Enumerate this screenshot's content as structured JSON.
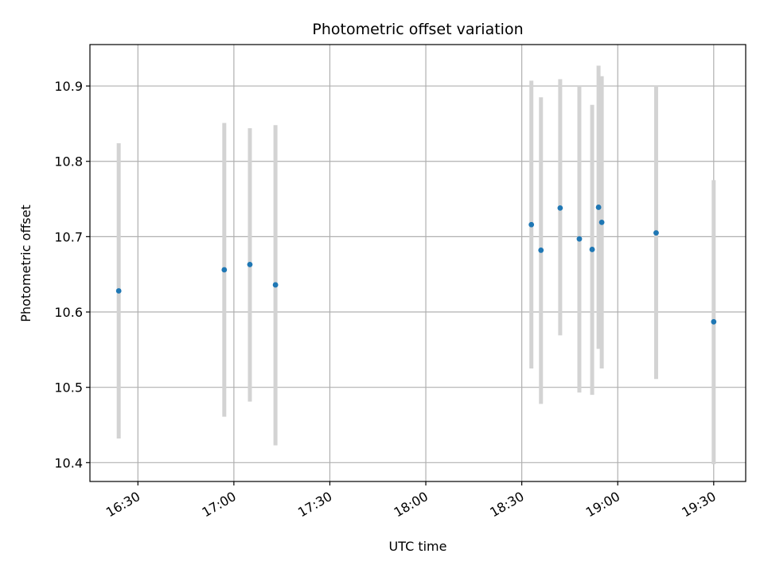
{
  "chart_data": {
    "type": "scatter",
    "title": "Photometric offset variation",
    "xlabel": "UTC time",
    "ylabel": "Photometric offset",
    "grid": true,
    "legend": "none",
    "xlim": [
      "16:15",
      "19:40"
    ],
    "ylim": [
      10.375,
      10.955
    ],
    "x_ticks": [
      "16:30",
      "17:00",
      "17:30",
      "18:00",
      "18:30",
      "19:00",
      "19:30"
    ],
    "y_ticks": [
      "10.4",
      "10.5",
      "10.6",
      "10.7",
      "10.8",
      "10.9"
    ],
    "marker_color": "#1f77b4",
    "errorbar_color": "#d3d3d3",
    "series": [
      {
        "x": [
          "16:24",
          "16:57",
          "17:05",
          "17:13",
          "18:33",
          "18:36",
          "18:42",
          "18:48",
          "18:52",
          "18:54",
          "18:55",
          "19:12",
          "19:30"
        ],
        "y": [
          10.628,
          10.656,
          10.663,
          10.636,
          10.716,
          10.682,
          10.738,
          10.697,
          10.683,
          10.739,
          10.719,
          10.705,
          10.587
        ],
        "yerr_low": [
          10.432,
          10.461,
          10.481,
          10.423,
          10.525,
          10.478,
          10.569,
          10.493,
          10.49,
          10.551,
          10.525,
          10.511,
          10.398
        ],
        "yerr_high": [
          10.824,
          10.851,
          10.844,
          10.848,
          10.907,
          10.885,
          10.909,
          10.9,
          10.875,
          10.927,
          10.913,
          10.9,
          10.775
        ]
      }
    ]
  }
}
